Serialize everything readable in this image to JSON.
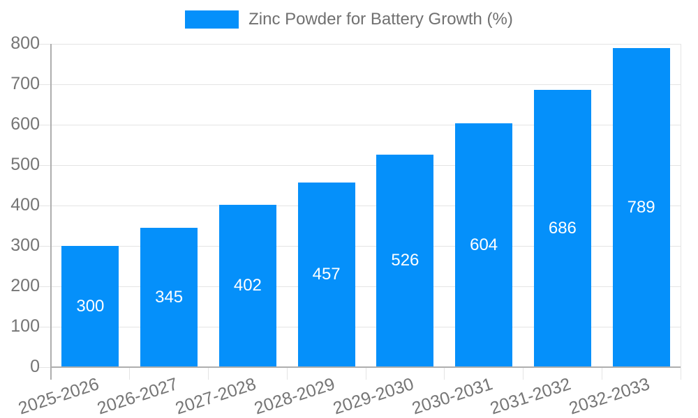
{
  "legend": {
    "label": "Zinc Powder for Battery Growth (%)"
  },
  "chart_data": {
    "type": "bar",
    "title": "Zinc Powder for Battery Growth (%)",
    "categories": [
      "2025-2026",
      "2026-2027",
      "2027-2028",
      "2028-2029",
      "2029-2030",
      "2030-2031",
      "2031-2032",
      "2032-2033"
    ],
    "series": [
      {
        "name": "Zinc Powder for Battery Growth (%)",
        "values": [
          300,
          345,
          402,
          457,
          526,
          604,
          686,
          789
        ]
      }
    ],
    "value_labels": [
      "300",
      "345",
      "402",
      "457",
      "526",
      "604",
      "686",
      "789"
    ],
    "xlabel": "",
    "ylabel": "",
    "ylim": [
      0,
      800
    ],
    "yticks": [
      0,
      100,
      200,
      300,
      400,
      500,
      600,
      700,
      800
    ],
    "grid": true,
    "legend_position": "top-center",
    "colors": {
      "bar": "#0590fa",
      "value_label": "#ffffff",
      "axis_text": "#757575",
      "legend_text": "#707070",
      "gridline": "#e4e4e4",
      "axis_line": "#aeaeae"
    },
    "x_label_rotation_deg": -18
  }
}
